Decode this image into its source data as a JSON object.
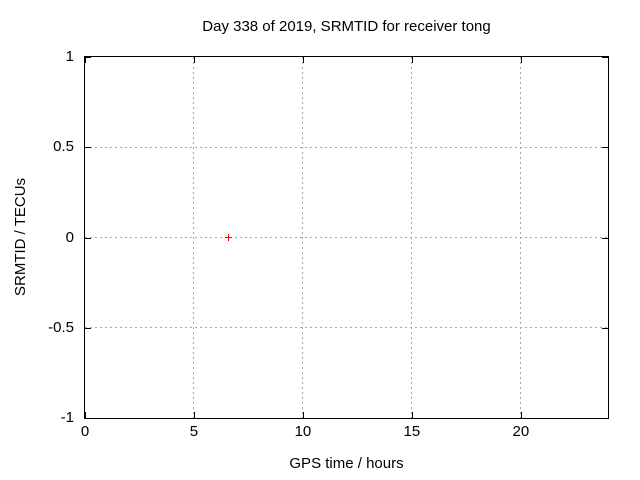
{
  "chart_data": {
    "type": "scatter",
    "title": "Day 338 of 2019, SRMTID for receiver tong",
    "xlabel": "GPS time / hours",
    "ylabel": "SRMTID / TECUs",
    "xlim": [
      0,
      24
    ],
    "ylim": [
      -1,
      1
    ],
    "xticks": [
      0,
      5,
      10,
      15,
      20
    ],
    "yticks": [
      1,
      0.5,
      0,
      -0.5,
      -1
    ],
    "grid": true,
    "legend": "none",
    "series": [
      {
        "name": "SRMTID",
        "marker": "plus",
        "color": "#ff0000",
        "points": [
          {
            "x": 6.6,
            "y": 0.0
          }
        ]
      }
    ],
    "colors": {
      "background": "#ffffff",
      "border": "#000000",
      "grid": "#a8a8a8",
      "text": "#000000"
    }
  }
}
